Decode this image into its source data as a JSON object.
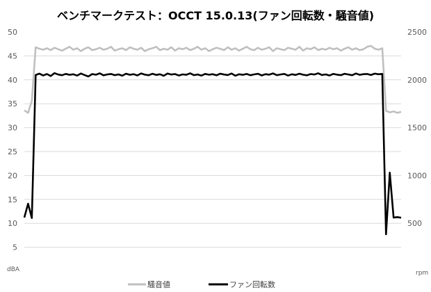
{
  "chart_data": {
    "type": "line",
    "title": "ベンチマークテスト：OCCT 15.0.13(ファン回転数・騒音値)",
    "ylabel": "dBA",
    "y2label": "rpm",
    "ylim": [
      0,
      50
    ],
    "y2lim": [
      0,
      2500
    ],
    "yticks": [
      "5",
      "10",
      "15",
      "20",
      "25",
      "30",
      "35",
      "40",
      "45",
      "50"
    ],
    "y2ticks": [
      "500",
      "1000",
      "1500",
      "2000",
      "2500"
    ],
    "grid": true,
    "legend_position": "bottom",
    "series": [
      {
        "name": "騒音値",
        "axis": "left",
        "color": "#bfbfbf",
        "values": [
          33.6,
          33.1,
          35.6,
          46.8,
          46.5,
          46.3,
          46.6,
          46.2,
          46.7,
          46.4,
          46.1,
          46.5,
          46.9,
          46.3,
          46.6,
          46.0,
          46.5,
          46.8,
          46.2,
          46.4,
          46.7,
          46.3,
          46.5,
          46.9,
          46.1,
          46.4,
          46.6,
          46.2,
          46.8,
          46.5,
          46.3,
          46.7,
          46.0,
          46.4,
          46.6,
          46.9,
          46.2,
          46.5,
          46.3,
          46.8,
          46.1,
          46.6,
          46.4,
          46.7,
          46.2,
          46.5,
          46.9,
          46.3,
          46.6,
          46.0,
          46.4,
          46.7,
          46.5,
          46.2,
          46.8,
          46.3,
          46.6,
          46.1,
          46.5,
          46.9,
          46.4,
          46.2,
          46.7,
          46.3,
          46.5,
          46.8,
          46.0,
          46.6,
          46.4,
          46.2,
          46.7,
          46.5,
          46.3,
          46.9,
          46.1,
          46.6,
          46.4,
          46.8,
          46.2,
          46.5,
          46.3,
          46.7,
          46.4,
          46.6,
          46.1,
          46.5,
          46.8,
          46.3,
          46.6,
          46.2,
          46.4,
          46.9,
          47.1,
          46.5,
          46.3,
          46.6,
          33.5,
          33.2,
          33.4,
          33.1,
          33.3
        ]
      },
      {
        "name": "ファン回転数",
        "axis": "right",
        "color": "#000000",
        "values": [
          560,
          705,
          555,
          2050,
          2065,
          2045,
          2060,
          2040,
          2070,
          2055,
          2048,
          2062,
          2052,
          2058,
          2044,
          2066,
          2050,
          2035,
          2060,
          2053,
          2068,
          2047,
          2056,
          2061,
          2049,
          2057,
          2043,
          2064,
          2052,
          2059,
          2046,
          2067,
          2054,
          2048,
          2063,
          2051,
          2058,
          2042,
          2066,
          2055,
          2060,
          2045,
          2057,
          2052,
          2068,
          2049,
          2056,
          2044,
          2062,
          2053,
          2059,
          2047,
          2064,
          2055,
          2050,
          2066,
          2043,
          2058,
          2052,
          2061,
          2048,
          2057,
          2063,
          2046,
          2059,
          2054,
          2067,
          2049,
          2056,
          2062,
          2044,
          2058,
          2051,
          2064,
          2053,
          2047,
          2060,
          2055,
          2068,
          2050,
          2057,
          2045,
          2062,
          2054,
          2049,
          2063,
          2056,
          2048,
          2066,
          2052,
          2059,
          2061,
          2050,
          2065,
          2058,
          2062,
          385,
          1030,
          560,
          565,
          558
        ]
      }
    ]
  }
}
